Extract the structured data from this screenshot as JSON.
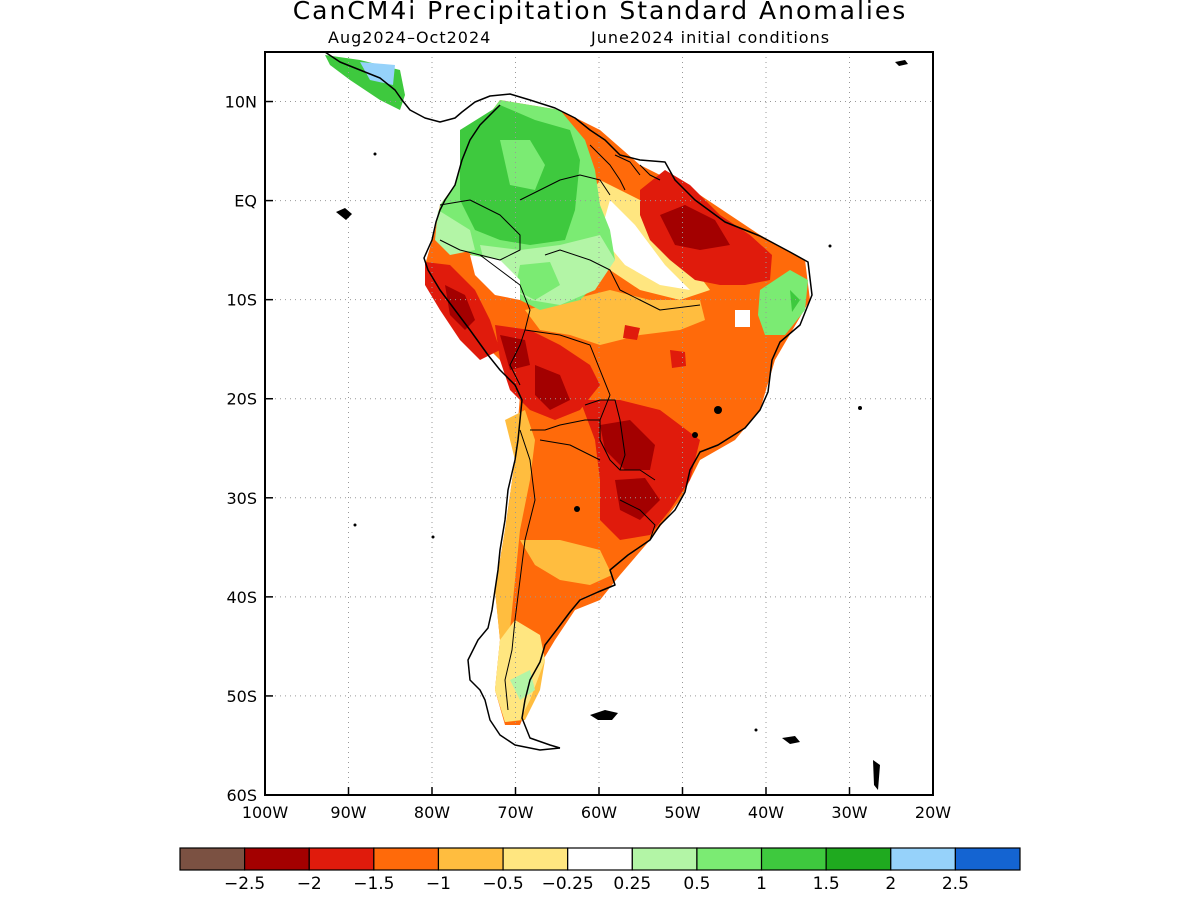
{
  "title": "CanCM4i Precipitation Standard Anomalies",
  "period": "Aug2024–Oct2024",
  "init": "June2024 initial conditions",
  "map": {
    "lon_range": [
      -100,
      -20
    ],
    "lat_range": [
      -60,
      15
    ],
    "lon_ticks": [
      "100W",
      "90W",
      "80W",
      "70W",
      "60W",
      "50W",
      "40W",
      "30W",
      "20W"
    ],
    "lat_ticks": [
      "10N",
      "EQ",
      "10S",
      "20S",
      "30S",
      "40S",
      "50S",
      "60S"
    ],
    "grid": "dotted",
    "region": "South America"
  },
  "colorbar": {
    "colors": [
      "#7b5142",
      "#a30000",
      "#e01b0c",
      "#ff6a0a",
      "#ffbd3f",
      "#ffe680",
      "#ffffff",
      "#b3f5a6",
      "#7beb73",
      "#3ec93e",
      "#1faa1f",
      "#96d2fa",
      "#1464d2"
    ],
    "labels": [
      "−2.5",
      "−2",
      "−1.5",
      "−1",
      "−0.5",
      "−0.25",
      "0.25",
      "0.5",
      "1",
      "1.5",
      "2",
      "2.5"
    ]
  },
  "anomaly_regions": [
    {
      "name": "Colombia-Venezuela",
      "value_class": "1 to 1.5"
    },
    {
      "name": "Western Amazon",
      "value_class": "0.5 to 1"
    },
    {
      "name": "Northeast Brazil coast",
      "value_class": "0.5 to 1.5"
    },
    {
      "name": "Lower Amazon / Para",
      "value_class": "-1.5 to -2"
    },
    {
      "name": "Central Brazil",
      "value_class": "-1 to -1.5"
    },
    {
      "name": "Peru-Bolivia",
      "value_class": "-1.5 to -2"
    },
    {
      "name": "Paraguay / Southern Brazil",
      "value_class": "-1.5 to -2"
    },
    {
      "name": "Argentina",
      "value_class": "-1 to -1.5"
    },
    {
      "name": "Patagonia",
      "value_class": "-0.25 to -1"
    }
  ]
}
